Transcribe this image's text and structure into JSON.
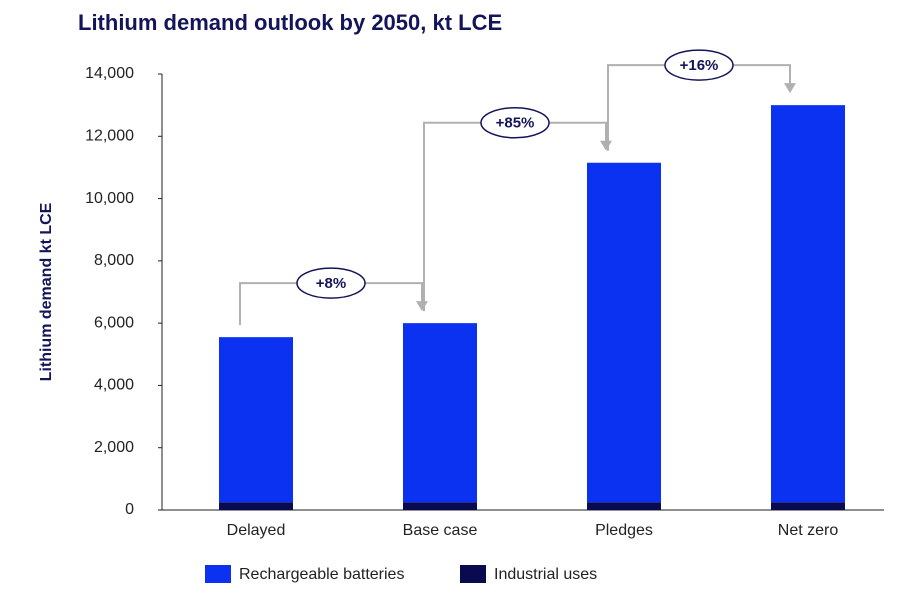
{
  "chart_data": {
    "type": "stacked-bar",
    "title": "Lithium demand outlook by 2050, kt LCE",
    "y_label": "Lithium demand kt LCE",
    "categories": [
      "Delayed",
      "Base case",
      "Pledges",
      "Net zero"
    ],
    "series": [
      {
        "name": "Rechargeable batteries",
        "color": "#0a32f0",
        "values": [
          5300,
          5750,
          10900,
          12750
        ]
      },
      {
        "name": "Industrial uses",
        "color": "#0a0a50",
        "values": [
          250,
          250,
          250,
          250
        ]
      }
    ],
    "annotations": [
      "+8%",
      "+85%",
      "+16%"
    ],
    "ylim": [
      0,
      14000
    ],
    "yticks": [
      0,
      {
        "value": 2000,
        "label": "2,000"
      },
      {
        "value": 4000,
        "label": "4,000"
      },
      {
        "value": 6000,
        "label": "6,000"
      },
      {
        "value": 8000,
        "label": "8,000"
      },
      {
        "value": 10000,
        "label": "10,000"
      },
      {
        "value": 12000,
        "label": "12,000"
      },
      {
        "value": 14000,
        "label": "14,000"
      }
    ]
  }
}
